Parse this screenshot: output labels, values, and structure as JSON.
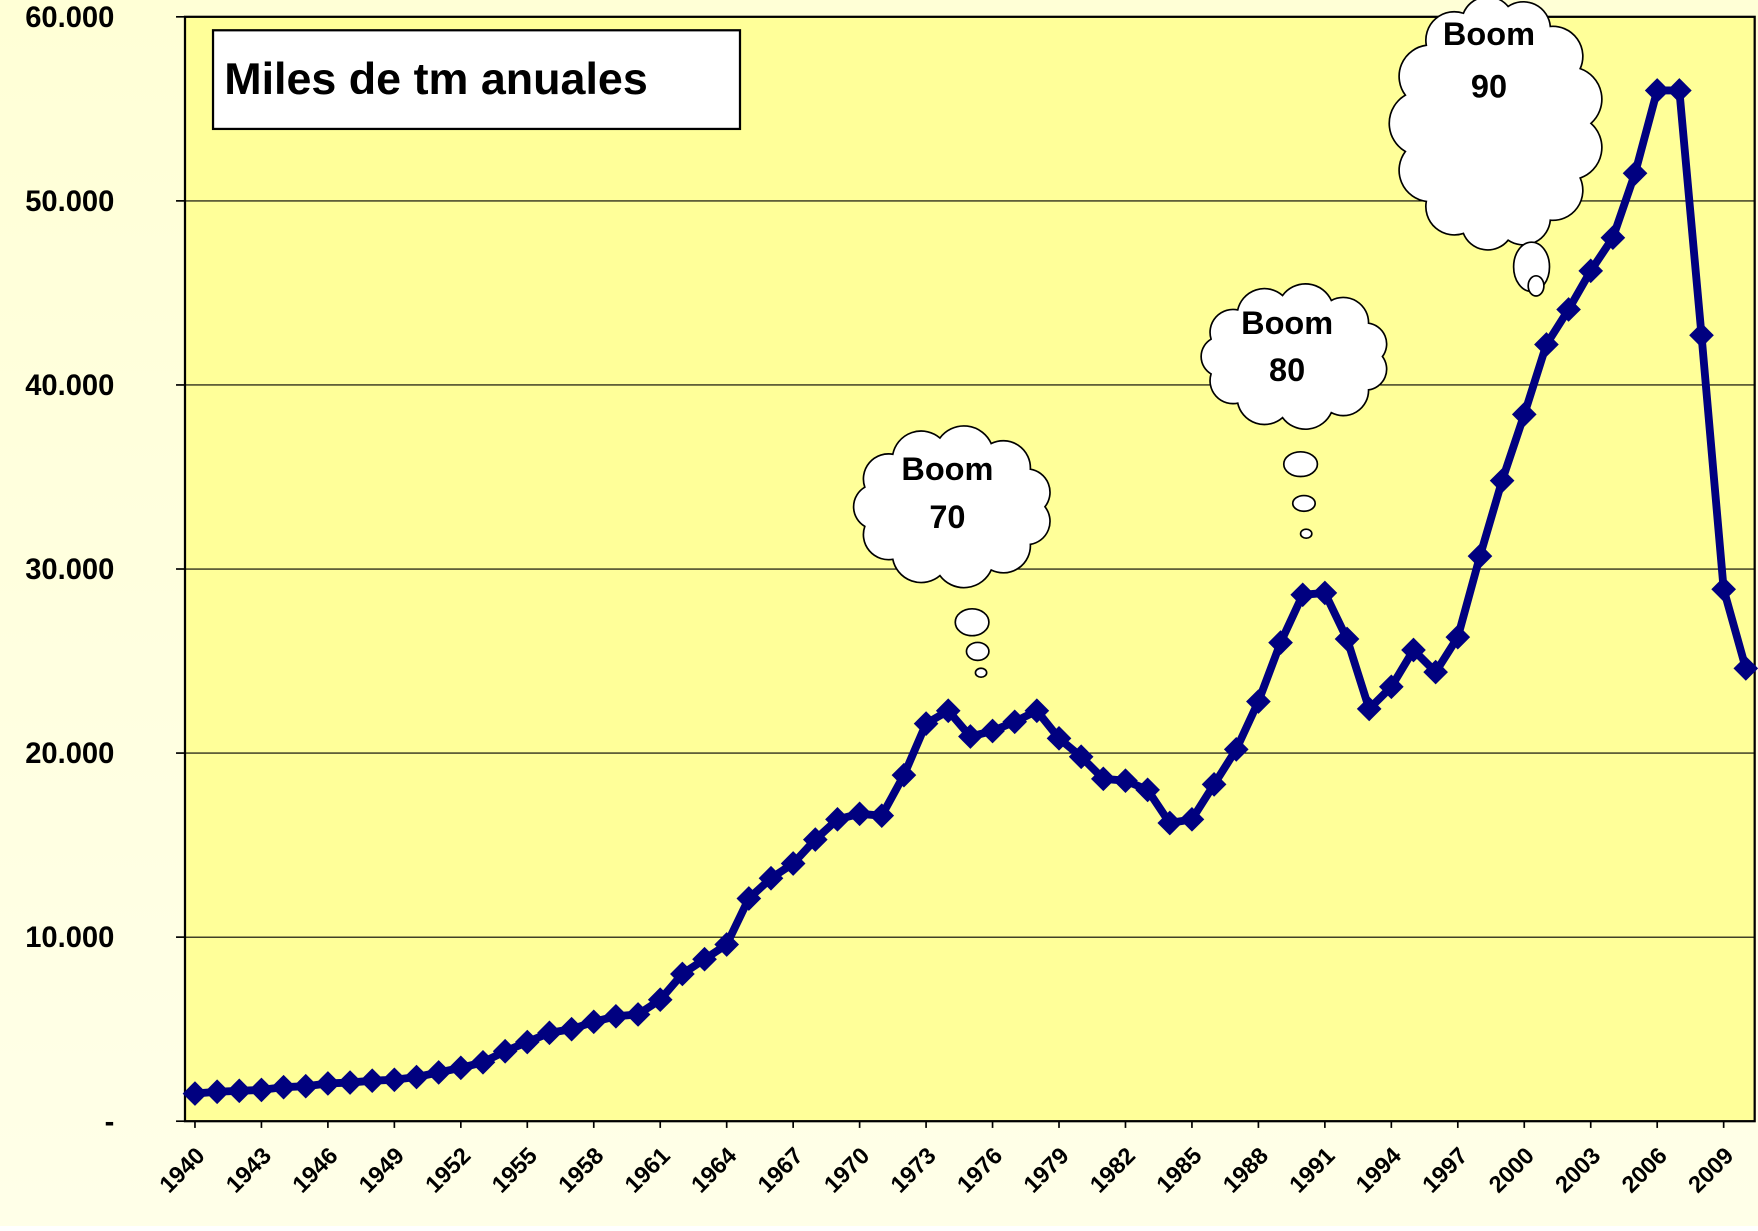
{
  "chart_data": {
    "type": "line",
    "title": "Miles de tm anuales",
    "x": [
      1940,
      1941,
      1942,
      1943,
      1944,
      1945,
      1946,
      1947,
      1948,
      1949,
      1950,
      1951,
      1952,
      1953,
      1954,
      1955,
      1956,
      1957,
      1958,
      1959,
      1960,
      1961,
      1962,
      1963,
      1964,
      1965,
      1966,
      1967,
      1968,
      1969,
      1970,
      1971,
      1972,
      1973,
      1974,
      1975,
      1976,
      1977,
      1978,
      1979,
      1980,
      1981,
      1982,
      1983,
      1984,
      1985,
      1986,
      1987,
      1988,
      1989,
      1990,
      1991,
      1992,
      1993,
      1994,
      1995,
      1996,
      1997,
      1998,
      1999,
      2000,
      2001,
      2002,
      2003,
      2004,
      2005,
      2006,
      2007,
      2008,
      2009,
      2010
    ],
    "values": [
      1500,
      1600,
      1650,
      1700,
      1850,
      1900,
      2050,
      2100,
      2200,
      2250,
      2400,
      2650,
      2900,
      3200,
      3800,
      4300,
      4800,
      5000,
      5400,
      5700,
      5800,
      6600,
      8000,
      8800,
      9600,
      12100,
      13200,
      14000,
      15300,
      16400,
      16700,
      16600,
      18800,
      21600,
      22300,
      20900,
      21200,
      21700,
      22300,
      20800,
      19800,
      18600,
      18500,
      18000,
      16200,
      16400,
      18300,
      20200,
      22800,
      26000,
      28600,
      28700,
      26200,
      22400,
      23600,
      25600,
      24400,
      26300,
      30700,
      34800,
      38400,
      42200,
      44100,
      46200,
      48000,
      51500,
      56000,
      56000,
      42700,
      28900,
      24600
    ],
    "color": "#000080",
    "xlim": [
      1939.55,
      2010.4
    ],
    "xticks": [
      1940,
      1943,
      1946,
      1949,
      1952,
      1955,
      1958,
      1961,
      1964,
      1967,
      1970,
      1973,
      1976,
      1979,
      1982,
      1985,
      1988,
      1991,
      1994,
      1997,
      2000,
      2003,
      2006,
      2009
    ],
    "ylim": [
      0,
      60000
    ],
    "yticks": [
      {
        "value": 0,
        "label": "-"
      },
      {
        "value": 10000,
        "label": "10.000"
      },
      {
        "value": 20000,
        "label": "20.000"
      },
      {
        "value": 30000,
        "label": "30.000"
      },
      {
        "value": 40000,
        "label": "40.000"
      },
      {
        "value": 50000,
        "label": "50.000"
      },
      {
        "value": 60000,
        "label": "60.000"
      }
    ],
    "grid": true,
    "annotations": [
      [
        "Boom",
        "70"
      ],
      [
        "Boom",
        "80"
      ],
      [
        "Boom",
        "90"
      ]
    ]
  }
}
